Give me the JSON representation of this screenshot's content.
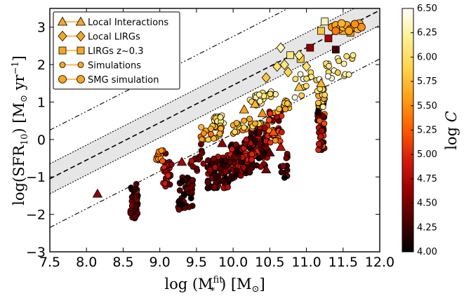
{
  "chart_data": {
    "type": "scatter",
    "xlabel": "log (M*fit) [M⊙]",
    "ylabel": "log(SFR10) [M⊙ yr−1]",
    "xlim": [
      7.5,
      12.0
    ],
    "ylim": [
      -3,
      3.5
    ],
    "x_ticks": [
      "7.5",
      "8.0",
      "8.5",
      "9.0",
      "9.5",
      "10.0",
      "10.5",
      "11.0",
      "11.5",
      "12.0"
    ],
    "y_ticks": [
      "−3",
      "−2",
      "−1",
      "0",
      "1",
      "2",
      "3"
    ],
    "grid": false,
    "legend_position": "top-left",
    "relation": {
      "slope": 1.0,
      "intercept": -8.55,
      "band_halfwidth": 0.4,
      "outer_offset": 1.3
    },
    "colorbar": {
      "label": "log C",
      "range": [
        4.0,
        6.5
      ],
      "ticks": [
        "4.00",
        "4.25",
        "4.50",
        "4.75",
        "5.00",
        "5.25",
        "5.50",
        "5.75",
        "6.00",
        "6.25",
        "6.50"
      ],
      "colormap": [
        "#000000",
        "#4a0000",
        "#960000",
        "#d41a0f",
        "#ff5a00",
        "#ff9c12",
        "#ffd24a",
        "#ffef8f",
        "#ffffff"
      ]
    },
    "series": [
      {
        "name": "Local Interactions",
        "marker": "triangle",
        "points": [
          [
            8.15,
            -1.45,
            4.6
          ],
          [
            9.3,
            -0.6,
            4.7
          ],
          [
            9.85,
            -0.1,
            4.6
          ],
          [
            10.15,
            0.8,
            5.6
          ],
          [
            10.3,
            0.95,
            5.7
          ],
          [
            10.4,
            0.7,
            5.5
          ],
          [
            10.55,
            0.2,
            5.2
          ],
          [
            10.65,
            -0.2,
            4.8
          ],
          [
            10.9,
            1.4,
            5.8
          ],
          [
            11.2,
            1.5,
            5.7
          ],
          [
            10.45,
            -0.8,
            4.5
          ],
          [
            10.5,
            -0.35,
            4.4
          ]
        ]
      },
      {
        "name": "Local LIRGs",
        "marker": "diamond",
        "points": [
          [
            10.45,
            1.65,
            5.8
          ],
          [
            10.6,
            1.95,
            6.0
          ],
          [
            10.65,
            2.45,
            6.3
          ],
          [
            10.7,
            2.0,
            6.1
          ],
          [
            10.75,
            1.8,
            5.9
          ],
          [
            10.9,
            2.25,
            6.2
          ],
          [
            11.0,
            1.95,
            6.0
          ]
        ]
      },
      {
        "name": "LIRGs z~0.3",
        "marker": "square",
        "points": [
          [
            10.78,
            2.25,
            6.1
          ],
          [
            10.92,
            2.15,
            5.8
          ],
          [
            11.05,
            2.45,
            4.6
          ],
          [
            11.2,
            2.9,
            5.8
          ],
          [
            11.25,
            3.15,
            6.3
          ],
          [
            11.3,
            2.7,
            4.7
          ],
          [
            11.4,
            2.4,
            4.3
          ],
          [
            11.5,
            2.9,
            5.7
          ],
          [
            11.6,
            2.85,
            5.6
          ]
        ]
      },
      {
        "name": "Simulations",
        "marker": "circle-small",
        "clusters": [
          [
            8.65,
            -1.7,
            0.05,
            0.5,
            46,
            4.0,
            4.7
          ],
          [
            9.1,
            -0.8,
            0.07,
            0.45,
            24,
            4.3,
            5.0
          ],
          [
            9.35,
            -1.4,
            0.1,
            0.45,
            54,
            4.0,
            4.6
          ],
          [
            9.8,
            -0.9,
            0.15,
            0.45,
            80,
            4.0,
            4.8
          ],
          [
            10.1,
            -0.5,
            0.15,
            0.5,
            80,
            4.1,
            5.0
          ],
          [
            10.35,
            -0.2,
            0.12,
            0.55,
            72,
            4.1,
            5.1
          ],
          [
            10.55,
            0.35,
            0.12,
            0.45,
            46,
            4.4,
            5.6
          ],
          [
            11.2,
            0.35,
            0.05,
            0.65,
            46,
            4.0,
            5.3
          ],
          [
            9.8,
            0.5,
            0.07,
            0.15,
            16,
            5.8,
            6.4
          ],
          [
            10.4,
            1.1,
            0.18,
            0.15,
            26,
            5.8,
            6.4
          ],
          [
            10.2,
            0.4,
            0.2,
            0.15,
            26,
            5.4,
            6.1
          ],
          [
            11.2,
            1.1,
            0.05,
            0.25,
            18,
            5.5,
            6.4
          ],
          [
            11.45,
            1.9,
            0.2,
            0.3,
            18,
            5.8,
            6.5
          ],
          [
            11.0,
            1.5,
            0.2,
            0.3,
            16,
            5.8,
            6.5
          ],
          [
            9.7,
            0.2,
            0.15,
            0.2,
            20,
            5.3,
            5.9
          ],
          [
            9.0,
            -0.45,
            0.05,
            0.15,
            14,
            5.2,
            5.6
          ],
          [
            10.7,
            0.9,
            0.1,
            0.15,
            12,
            5.5,
            5.9
          ],
          [
            10.7,
            -0.7,
            0.05,
            0.35,
            12,
            4.0,
            4.6
          ],
          [
            9.5,
            -0.5,
            0.1,
            0.35,
            14,
            4.3,
            4.8
          ]
        ]
      },
      {
        "name": "SMG simulation",
        "marker": "circle-large",
        "points": [
          [
            11.35,
            3.0,
            5.5
          ],
          [
            11.4,
            3.05,
            5.6
          ],
          [
            11.45,
            2.95,
            5.6
          ],
          [
            11.5,
            3.0,
            5.7
          ],
          [
            11.55,
            3.05,
            5.6
          ],
          [
            11.6,
            2.95,
            5.5
          ],
          [
            11.65,
            3.0,
            5.6
          ],
          [
            11.7,
            2.95,
            5.7
          ],
          [
            11.72,
            3.1,
            5.6
          ],
          [
            11.75,
            3.0,
            5.5
          ],
          [
            11.58,
            2.9,
            5.6
          ],
          [
            11.48,
            3.1,
            5.7
          ],
          [
            11.4,
            2.9,
            5.4
          ],
          [
            11.66,
            3.08,
            5.5
          ]
        ]
      }
    ]
  }
}
